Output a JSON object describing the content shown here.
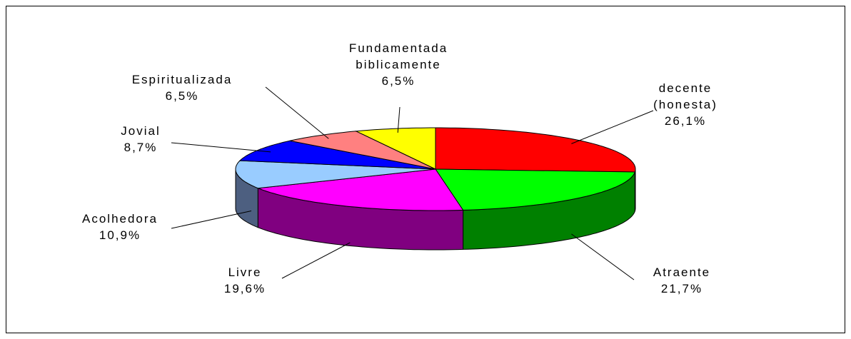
{
  "chart_data": {
    "type": "pie3d",
    "categories": [
      "decente (honesta)",
      "Atraente",
      "Livre",
      "Acolhedora",
      "Jovial",
      "Espiritualizada",
      "Fundamentada biblicamente"
    ],
    "values": [
      26.1,
      21.7,
      19.6,
      10.9,
      8.7,
      6.5,
      6.5
    ],
    "value_labels": [
      "26,1%",
      "21,7%",
      "19,6%",
      "10,9%",
      "8,7%",
      "6,5%",
      "6,5%"
    ],
    "colors": [
      "#ff0000",
      "#00ff00",
      "#ff00ff",
      "#99ccff",
      "#0000ff",
      "#ff8080",
      "#ffff00"
    ],
    "side_colors": [
      "#990000",
      "#008000",
      "#800080",
      "#4d5f80",
      "#000099",
      "#996060",
      "#999900"
    ]
  }
}
